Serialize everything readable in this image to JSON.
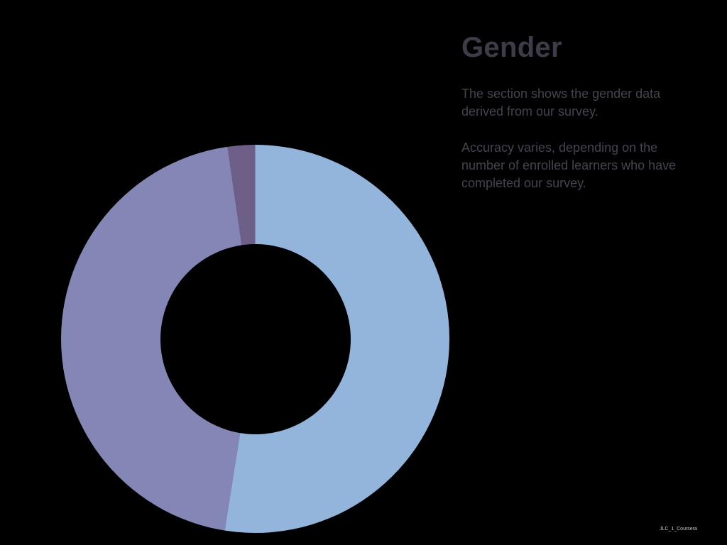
{
  "colors": {
    "background": "#000000",
    "title_text": "#3f3c49",
    "body_text": "#46434f",
    "watermark_text": "#c9c9c9",
    "slice_blue": "#93b4db",
    "slice_purple": "#8487b5",
    "slice_dark_purple": "#6d5f87"
  },
  "chart_data": {
    "type": "pie",
    "subtype": "donut",
    "title": "Gender",
    "segments": [
      {
        "color": "#93b4db",
        "percent": 52.5
      },
      {
        "color": "#8487b5",
        "percent": 45.2
      },
      {
        "color": "#6d5f87",
        "percent": 2.3
      }
    ],
    "start_angle_deg": 0,
    "direction": "clockwise",
    "inner_radius_ratio": 0.49,
    "legend": "none",
    "data_labels": "none"
  },
  "panel": {
    "title": "Gender",
    "paragraph1": "The section shows the gender data\nderived from our survey.",
    "paragraph2": "Accuracy varies, depending on the\nnumber of enrolled learners who have\ncompleted our survey."
  },
  "watermark": "JLC_1_Coursera"
}
